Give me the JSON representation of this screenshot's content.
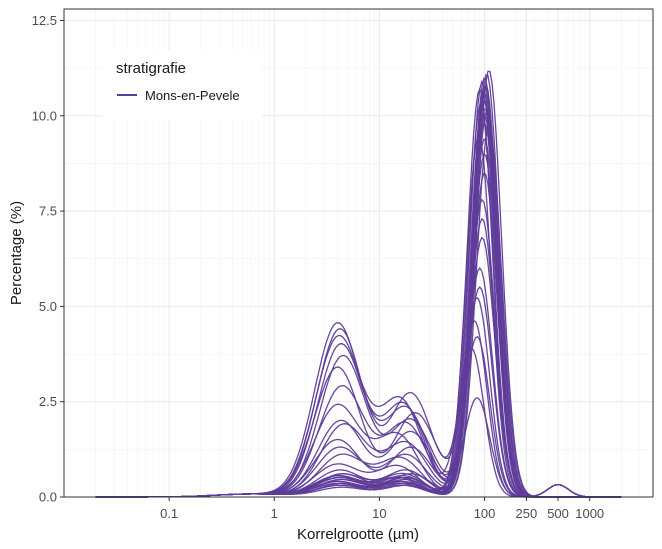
{
  "chart_data": {
    "type": "line",
    "xlabel": "Korrelgrootte (µm)",
    "ylabel": "Percentage (%)",
    "x_scale": "log10",
    "xlim": [
      0.01,
      4000
    ],
    "ylim": [
      0,
      12.8
    ],
    "x_ticks": [
      {
        "value": 0.1,
        "label": "0.1"
      },
      {
        "value": 1,
        "label": "1"
      },
      {
        "value": 10,
        "label": "10"
      },
      {
        "value": 100,
        "label": "100"
      },
      {
        "value": 250,
        "label": "250"
      },
      {
        "value": 500,
        "label": "500"
      },
      {
        "value": 1000,
        "label": "1000"
      }
    ],
    "y_ticks": [
      {
        "value": 0,
        "label": "0.0"
      },
      {
        "value": 2.5,
        "label": "2.5"
      },
      {
        "value": 5,
        "label": "5.0"
      },
      {
        "value": 7.5,
        "label": "7.5"
      },
      {
        "value": 10,
        "label": "10.0"
      },
      {
        "value": 12.5,
        "label": "12.5"
      }
    ],
    "grid": true,
    "legend": {
      "title": "stratigrafie",
      "placement": "top-left",
      "entries": [
        "Mons-en-Pevele"
      ]
    },
    "series_color": "#5e3c99",
    "group": "Mons-en-Pevele",
    "curve_components": [
      {
        "fine_peak_height": 4.55,
        "fine_peak_um": 4.0,
        "silt_shoulder_height": 2.4,
        "silt_shoulder_um": 17,
        "sand_peak_height": 2.6,
        "sand_peak_um": 85
      },
      {
        "fine_peak_height": 4.4,
        "fine_peak_um": 4.2,
        "silt_shoulder_height": 2.7,
        "silt_shoulder_um": 20,
        "sand_peak_height": 4.6,
        "sand_peak_um": 80
      },
      {
        "fine_peak_height": 4.2,
        "fine_peak_um": 4.1,
        "silt_shoulder_height": 2.5,
        "silt_shoulder_um": 16,
        "sand_peak_height": 3.9,
        "sand_peak_um": 75
      },
      {
        "fine_peak_height": 4.0,
        "fine_peak_um": 4.3,
        "silt_shoulder_height": 2.3,
        "silt_shoulder_um": 18,
        "sand_peak_height": 4.2,
        "sand_peak_um": 85
      },
      {
        "fine_peak_height": 3.7,
        "fine_peak_um": 4.5,
        "silt_shoulder_height": 2.0,
        "silt_shoulder_um": 20,
        "sand_peak_height": 5.5,
        "sand_peak_um": 90
      },
      {
        "fine_peak_height": 3.4,
        "fine_peak_um": 4.0,
        "silt_shoulder_height": 2.2,
        "silt_shoulder_um": 22,
        "sand_peak_height": 5.2,
        "sand_peak_um": 85
      },
      {
        "fine_peak_height": 2.9,
        "fine_peak_um": 4.4,
        "silt_shoulder_height": 1.9,
        "silt_shoulder_um": 18,
        "sand_peak_height": 6.0,
        "sand_peak_um": 90
      },
      {
        "fine_peak_height": 2.4,
        "fine_peak_um": 4.0,
        "silt_shoulder_height": 1.6,
        "silt_shoulder_um": 15,
        "sand_peak_height": 7.3,
        "sand_peak_um": 95
      },
      {
        "fine_peak_height": 2.0,
        "fine_peak_um": 4.3,
        "silt_shoulder_height": 1.7,
        "silt_shoulder_um": 20,
        "sand_peak_height": 6.8,
        "sand_peak_um": 95
      },
      {
        "fine_peak_height": 1.9,
        "fine_peak_um": 4.6,
        "silt_shoulder_height": 1.4,
        "silt_shoulder_um": 18,
        "sand_peak_height": 7.8,
        "sand_peak_um": 95
      },
      {
        "fine_peak_height": 1.5,
        "fine_peak_um": 4.0,
        "silt_shoulder_height": 1.3,
        "silt_shoulder_um": 20,
        "sand_peak_height": 8.5,
        "sand_peak_um": 100
      },
      {
        "fine_peak_height": 1.3,
        "fine_peak_um": 4.2,
        "silt_shoulder_height": 1.1,
        "silt_shoulder_um": 18,
        "sand_peak_height": 9.0,
        "sand_peak_um": 100
      },
      {
        "fine_peak_height": 1.1,
        "fine_peak_um": 4.4,
        "silt_shoulder_height": 1.0,
        "silt_shoulder_um": 16,
        "sand_peak_height": 9.4,
        "sand_peak_um": 100
      },
      {
        "fine_peak_height": 0.85,
        "fine_peak_um": 4.0,
        "silt_shoulder_height": 0.8,
        "silt_shoulder_um": 15,
        "sand_peak_height": 9.8,
        "sand_peak_um": 100
      },
      {
        "fine_peak_height": 0.7,
        "fine_peak_um": 4.2,
        "silt_shoulder_height": 0.7,
        "silt_shoulder_um": 18,
        "sand_peak_height": 10.0,
        "sand_peak_um": 100
      },
      {
        "fine_peak_height": 0.6,
        "fine_peak_um": 4.5,
        "silt_shoulder_height": 0.6,
        "silt_shoulder_um": 20,
        "sand_peak_height": 10.2,
        "sand_peak_um": 100
      },
      {
        "fine_peak_height": 0.55,
        "fine_peak_um": 4.0,
        "silt_shoulder_height": 0.55,
        "silt_shoulder_um": 17,
        "sand_peak_height": 10.4,
        "sand_peak_um": 100
      },
      {
        "fine_peak_height": 0.5,
        "fine_peak_um": 4.1,
        "silt_shoulder_height": 0.5,
        "silt_shoulder_um": 15,
        "sand_peak_height": 10.6,
        "sand_peak_um": 100
      },
      {
        "fine_peak_height": 0.45,
        "fine_peak_um": 4.3,
        "silt_shoulder_height": 0.45,
        "silt_shoulder_um": 18,
        "sand_peak_height": 10.8,
        "sand_peak_um": 100
      },
      {
        "fine_peak_height": 0.4,
        "fine_peak_um": 4.0,
        "silt_shoulder_height": 0.4,
        "silt_shoulder_um": 16,
        "sand_peak_height": 11.0,
        "sand_peak_um": 100
      },
      {
        "fine_peak_height": 0.35,
        "fine_peak_um": 4.4,
        "silt_shoulder_height": 0.35,
        "silt_shoulder_um": 18,
        "sand_peak_height": 11.1,
        "sand_peak_um": 105
      },
      {
        "fine_peak_height": 0.3,
        "fine_peak_um": 4.2,
        "silt_shoulder_height": 0.3,
        "silt_shoulder_um": 17,
        "sand_peak_height": 11.2,
        "sand_peak_um": 110
      },
      {
        "fine_peak_height": 0.35,
        "fine_peak_um": 4.0,
        "silt_shoulder_height": 0.4,
        "silt_shoulder_um": 16,
        "sand_peak_height": 10.9,
        "sand_peak_um": 95
      },
      {
        "fine_peak_height": 0.5,
        "fine_peak_um": 4.2,
        "silt_shoulder_height": 0.5,
        "silt_shoulder_um": 18,
        "sand_peak_height": 10.7,
        "sand_peak_um": 90
      },
      {
        "fine_peak_height": 0.6,
        "fine_peak_um": 4.4,
        "silt_shoulder_height": 0.6,
        "silt_shoulder_um": 17,
        "sand_peak_height": 10.3,
        "sand_peak_um": 92
      },
      {
        "fine_peak_height": 0.55,
        "fine_peak_um": 4.1,
        "silt_shoulder_height": 0.5,
        "silt_shoulder_um": 16,
        "sand_peak_height": 10.1,
        "sand_peak_um": 105
      },
      {
        "fine_peak_height": 0.45,
        "fine_peak_um": 4.3,
        "silt_shoulder_height": 0.5,
        "silt_shoulder_um": 18,
        "sand_peak_height": 9.7,
        "sand_peak_um": 110
      },
      {
        "fine_peak_height": 0.4,
        "fine_peak_um": 4.0,
        "silt_shoulder_height": 0.4,
        "silt_shoulder_um": 17,
        "sand_peak_height": 9.5,
        "sand_peak_um": 88
      },
      {
        "fine_peak_height": 0.3,
        "fine_peak_um": 4.2,
        "silt_shoulder_height": 0.35,
        "silt_shoulder_um": 16,
        "sand_peak_height": 10.5,
        "sand_peak_um": 97
      },
      {
        "fine_peak_height": 0.25,
        "fine_peak_um": 4.4,
        "silt_shoulder_height": 0.3,
        "silt_shoulder_um": 18,
        "sand_peak_height": 10.8,
        "sand_peak_um": 103
      }
    ],
    "coarse_tail": {
      "height": 0.65,
      "um": 500
    }
  }
}
